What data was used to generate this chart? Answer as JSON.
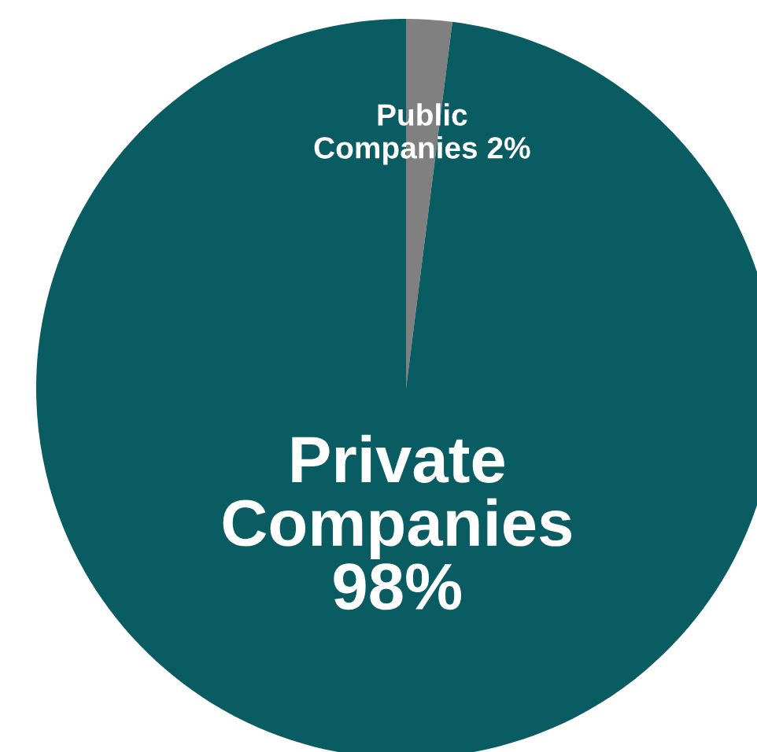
{
  "chart_data": {
    "type": "pie",
    "categories": [
      "Public Companies",
      "Private Companies"
    ],
    "values": [
      2,
      98
    ],
    "colors": [
      "#808080",
      "#0a5c63"
    ],
    "value_labels": [
      "2%",
      "98%"
    ],
    "legend": false
  }
}
